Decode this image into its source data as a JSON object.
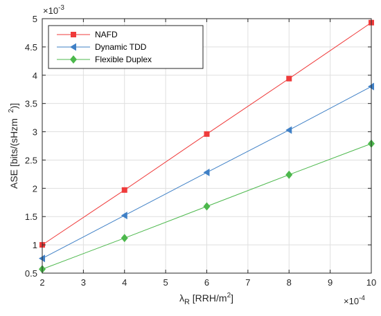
{
  "chart_data": {
    "type": "line",
    "x": [
      2,
      4,
      6,
      8,
      10
    ],
    "series": [
      {
        "name": "NAFD",
        "values": [
          1.0,
          1.97,
          2.96,
          3.94,
          4.93
        ],
        "color": "#ef3b3b",
        "marker": "square"
      },
      {
        "name": "Dynamic TDD",
        "values": [
          0.76,
          1.52,
          2.28,
          3.03,
          3.8
        ],
        "color": "#3f80c6",
        "marker": "triangle-left"
      },
      {
        "name": "Flexible Duplex",
        "values": [
          0.57,
          1.12,
          1.68,
          2.24,
          2.79
        ],
        "color": "#4cb84c",
        "marker": "diamond"
      }
    ],
    "xlim": [
      2,
      10
    ],
    "ylim": [
      0.5,
      5
    ],
    "xticks": [
      "2",
      "3",
      "4",
      "5",
      "6",
      "7",
      "8",
      "9",
      "10"
    ],
    "yticks": [
      "0.5",
      "1",
      "1.5",
      "2",
      "2.5",
      "3",
      "3.5",
      "4",
      "4.5",
      "5"
    ],
    "x_exponent": "×10",
    "x_exponent_power": "-4",
    "y_exponent": "×10",
    "y_exponent_power": "-3",
    "xlabel": "λ",
    "xlabel_sub": "R",
    "xlabel_unit": " [RRH/m",
    "xlabel_unit_power": "2",
    "xlabel_close": "]",
    "ylabel": "ASE [bits/(sHzm",
    "ylabel_power": "2",
    "ylabel_close": ")]",
    "grid": true,
    "legend_position": "top-left",
    "axis_color": "#262626",
    "grid_color": "#dfdfdf"
  }
}
